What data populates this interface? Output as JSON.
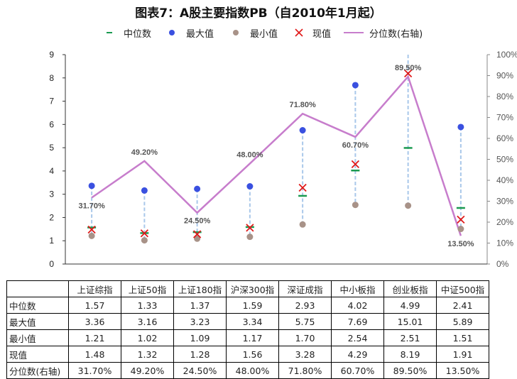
{
  "title": "图表7：A股主要指数PB（自2010年1月起）",
  "legend": [
    {
      "label": "中位数",
      "icon": "green-dash-marker",
      "color": "#1a9a50"
    },
    {
      "label": "最大值",
      "icon": "blue-dot-marker",
      "color": "#3a50e0"
    },
    {
      "label": "最小值",
      "icon": "taupe-dot-marker",
      "color": "#a89288"
    },
    {
      "label": "现值",
      "icon": "red-x-marker",
      "color": "#e01818"
    },
    {
      "label": "分位数(右轴)",
      "icon": "purple-line-marker",
      "color": "#c77dcc"
    }
  ],
  "chart_data": {
    "type": "line",
    "categories": [
      "上证综指",
      "上证50指",
      "上证180指",
      "沪深300指",
      "深证成指",
      "中小板指",
      "创业板指",
      "中证500指"
    ],
    "series": [
      {
        "name": "中位数",
        "values": [
          1.57,
          1.33,
          1.37,
          1.59,
          2.93,
          4.02,
          4.99,
          2.41
        ],
        "color": "#1a9a50"
      },
      {
        "name": "最大值",
        "values": [
          3.36,
          3.16,
          3.23,
          3.34,
          5.75,
          7.69,
          15.01,
          5.89
        ],
        "color": "#3a50e0"
      },
      {
        "name": "最小值",
        "values": [
          1.21,
          1.02,
          1.09,
          1.17,
          1.7,
          2.54,
          2.51,
          1.51
        ],
        "color": "#a89288"
      },
      {
        "name": "现值",
        "values": [
          1.48,
          1.32,
          1.28,
          1.56,
          3.28,
          4.29,
          8.19,
          1.91
        ],
        "color": "#e01818"
      },
      {
        "name": "分位数(右轴)",
        "values": [
          31.7,
          49.2,
          24.5,
          48.0,
          71.8,
          60.7,
          89.5,
          13.5
        ],
        "axis": "right",
        "color": "#c77dcc"
      }
    ],
    "percentile_labels": [
      "31.70%",
      "49.20%",
      "24.50%",
      "48.00%",
      "71.80%",
      "60.70%",
      "89.50%",
      "13.50%"
    ],
    "y_left": {
      "min": 0,
      "max": 9,
      "ticks": [
        "0",
        "1",
        "2",
        "3",
        "4",
        "5",
        "6",
        "7",
        "8",
        "9"
      ]
    },
    "y_right": {
      "min": 0,
      "max": 100,
      "ticks": [
        "0%",
        "10%",
        "20%",
        "30%",
        "40%",
        "50%",
        "60%",
        "70%",
        "80%",
        "90%",
        "100%"
      ]
    },
    "range_line_color": "#a9c8ea",
    "grid": false,
    "legend_position": "top"
  },
  "table": {
    "rows": [
      {
        "header": "中位数",
        "cells": [
          "1.57",
          "1.33",
          "1.37",
          "1.59",
          "2.93",
          "4.02",
          "4.99",
          "2.41"
        ]
      },
      {
        "header": "最大值",
        "cells": [
          "3.36",
          "3.16",
          "3.23",
          "3.34",
          "5.75",
          "7.69",
          "15.01",
          "5.89"
        ]
      },
      {
        "header": "最小值",
        "cells": [
          "1.21",
          "1.02",
          "1.09",
          "1.17",
          "1.70",
          "2.54",
          "2.51",
          "1.51"
        ]
      },
      {
        "header": "现值",
        "cells": [
          "1.48",
          "1.32",
          "1.28",
          "1.56",
          "3.28",
          "4.29",
          "8.19",
          "1.91"
        ]
      },
      {
        "header": "分位数(右轴)",
        "cells": [
          "31.70%",
          "49.20%",
          "24.50%",
          "48.00%",
          "71.80%",
          "60.70%",
          "89.50%",
          "13.50%"
        ]
      }
    ]
  }
}
